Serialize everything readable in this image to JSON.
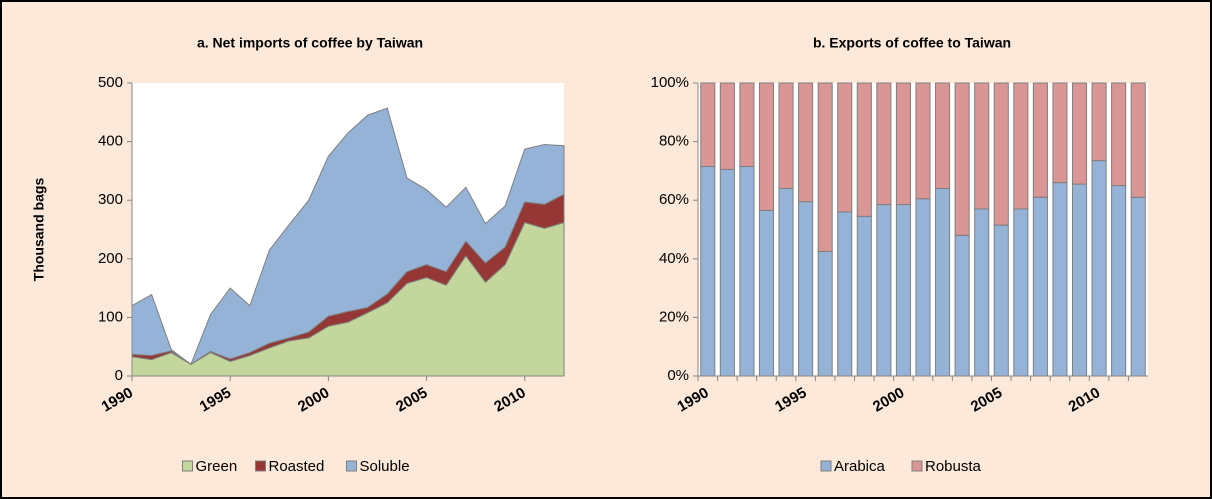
{
  "chart_data": [
    {
      "type": "stacked-area",
      "title": "a. Net imports of coffee by Taiwan",
      "ylabel": "Thousand bags",
      "x": [
        1990,
        1991,
        1992,
        1993,
        1994,
        1995,
        1996,
        1997,
        1998,
        1999,
        2000,
        2001,
        2002,
        2003,
        2004,
        2005,
        2006,
        2007,
        2008,
        2009,
        2010,
        2011,
        2012
      ],
      "xlim": [
        1990,
        2012
      ],
      "xticks": [
        1990,
        1995,
        2000,
        2005,
        2010
      ],
      "ylim": [
        0,
        500
      ],
      "yticks": [
        0,
        100,
        200,
        300,
        400,
        500
      ],
      "grid": false,
      "series": [
        {
          "name": "Green",
          "color": "#c3d69b",
          "values": [
            33,
            28,
            40,
            20,
            40,
            25,
            35,
            48,
            60,
            65,
            85,
            92,
            108,
            125,
            158,
            168,
            155,
            205,
            160,
            190,
            262,
            252,
            262
          ]
        },
        {
          "name": "Roasted",
          "color": "#953735",
          "values": [
            4,
            7,
            3,
            0,
            2,
            4,
            5,
            8,
            5,
            10,
            17,
            18,
            9,
            15,
            20,
            22,
            23,
            25,
            33,
            30,
            35,
            41,
            48
          ]
        },
        {
          "name": "Soluble",
          "color": "#95b3d7",
          "values": [
            83,
            104,
            2,
            0,
            63,
            121,
            80,
            159,
            193,
            225,
            273,
            305,
            328,
            317,
            160,
            128,
            110,
            92,
            67,
            70,
            90,
            102,
            83
          ]
        }
      ]
    },
    {
      "type": "stacked-bar",
      "title": "b. Exports of coffee to Taiwan",
      "categories": [
        "1990",
        null,
        null,
        null,
        null,
        "1995",
        null,
        null,
        null,
        null,
        "2000",
        null,
        null,
        null,
        null,
        "2005",
        null,
        null,
        null,
        null,
        "2010",
        null,
        null
      ],
      "ylim": [
        0,
        100
      ],
      "yticks": [
        {
          "value": 0,
          "label": "0%"
        },
        {
          "value": 20,
          "label": "20%"
        },
        {
          "value": 40,
          "label": "40%"
        },
        {
          "value": 60,
          "label": "60%"
        },
        {
          "value": 80,
          "label": "80%"
        },
        {
          "value": 100,
          "label": "100%"
        }
      ],
      "grid": false,
      "series": [
        {
          "name": "Arabica",
          "color": "#95b3d7",
          "values": [
            71.5,
            70.5,
            71.5,
            56.5,
            64,
            59.5,
            42.5,
            56,
            54.5,
            58.5,
            58.5,
            60.5,
            64,
            48,
            57,
            51.5,
            57,
            61,
            66,
            65.5,
            73.5,
            65,
            61
          ]
        },
        {
          "name": "Robusta",
          "color": "#d99694",
          "values": [
            28.5,
            29.5,
            28.5,
            43.5,
            36,
            40.5,
            57.5,
            44,
            45.5,
            41.5,
            41.5,
            39.5,
            36,
            52,
            43,
            48.5,
            43,
            39,
            34,
            34.5,
            26.5,
            35,
            39
          ]
        }
      ]
    }
  ]
}
